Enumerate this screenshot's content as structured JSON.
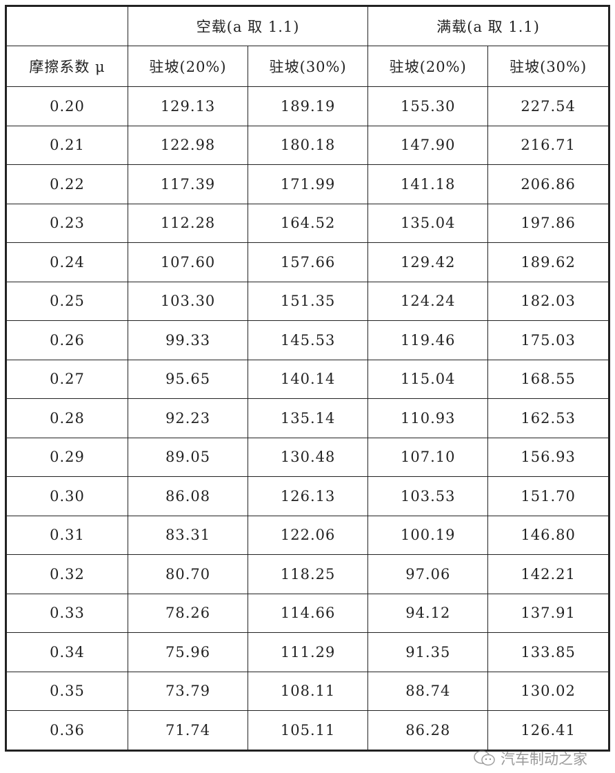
{
  "header": {
    "empty_load": "空载(a 取 1.1)",
    "full_load": "满载(a 取 1.1)",
    "mu": "摩擦系数 μ",
    "sub": [
      "驻坡(20%)",
      "驻坡(30%)",
      "驻坡(20%)",
      "驻坡(30%)"
    ]
  },
  "rows": [
    [
      "0.20",
      "129.13",
      "189.19",
      "155.30",
      "227.54"
    ],
    [
      "0.21",
      "122.98",
      "180.18",
      "147.90",
      "216.71"
    ],
    [
      "0.22",
      "117.39",
      "171.99",
      "141.18",
      "206.86"
    ],
    [
      "0.23",
      "112.28",
      "164.52",
      "135.04",
      "197.86"
    ],
    [
      "0.24",
      "107.60",
      "157.66",
      "129.42",
      "189.62"
    ],
    [
      "0.25",
      "103.30",
      "151.35",
      "124.24",
      "182.03"
    ],
    [
      "0.26",
      "99.33",
      "145.53",
      "119.46",
      "175.03"
    ],
    [
      "0.27",
      "95.65",
      "140.14",
      "115.04",
      "168.55"
    ],
    [
      "0.28",
      "92.23",
      "135.14",
      "110.93",
      "162.53"
    ],
    [
      "0.29",
      "89.05",
      "130.48",
      "107.10",
      "156.93"
    ],
    [
      "0.30",
      "86.08",
      "126.13",
      "103.53",
      "151.70"
    ],
    [
      "0.31",
      "83.31",
      "122.06",
      "100.19",
      "146.80"
    ],
    [
      "0.32",
      "80.70",
      "118.25",
      "97.06",
      "142.21"
    ],
    [
      "0.33",
      "78.26",
      "114.66",
      "94.12",
      "137.91"
    ],
    [
      "0.34",
      "75.96",
      "111.29",
      "91.35",
      "133.85"
    ],
    [
      "0.35",
      "73.79",
      "108.11",
      "88.74",
      "130.02"
    ],
    [
      "0.36",
      "71.74",
      "105.11",
      "86.28",
      "126.41"
    ]
  ],
  "watermark": {
    "icon": "wechat-icon",
    "text": "汽车制动之家"
  }
}
